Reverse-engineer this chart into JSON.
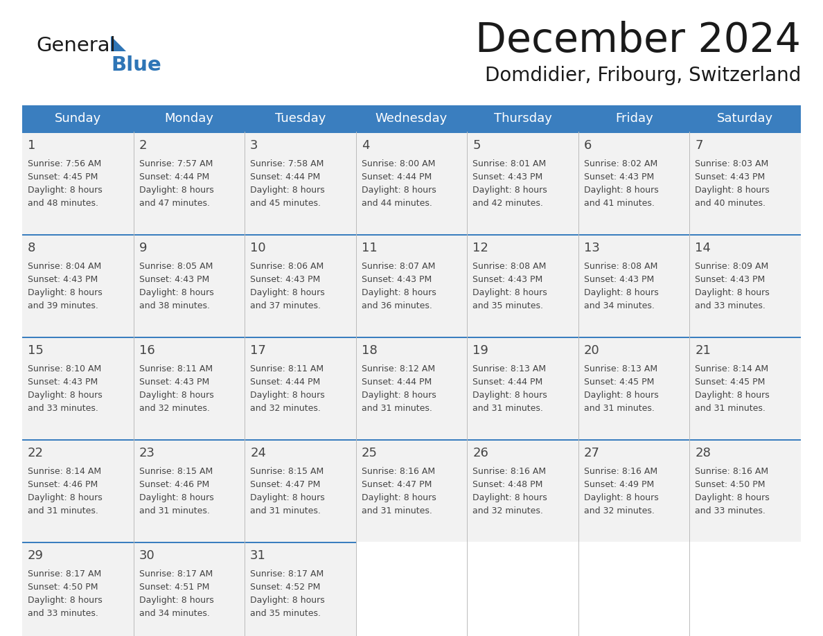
{
  "title": "December 2024",
  "subtitle": "Domdidier, Fribourg, Switzerland",
  "days_of_week": [
    "Sunday",
    "Monday",
    "Tuesday",
    "Wednesday",
    "Thursday",
    "Friday",
    "Saturday"
  ],
  "header_bg": "#3a7ebf",
  "header_text_color": "#ffffff",
  "cell_bg": "#f2f2f2",
  "cell_bg_empty": "#ffffff",
  "divider_color": "#3a7ebf",
  "text_color": "#444444",
  "title_color": "#1a1a1a",
  "logo_general_color": "#1a1a1a",
  "logo_blue_color": "#2e75b6",
  "logo_triangle_color": "#2e75b6",
  "calendar_data": [
    [
      {
        "day": 1,
        "sunrise": "7:56 AM",
        "sunset": "4:45 PM",
        "daylight_hours": 8,
        "daylight_minutes": 48
      },
      {
        "day": 2,
        "sunrise": "7:57 AM",
        "sunset": "4:44 PM",
        "daylight_hours": 8,
        "daylight_minutes": 47
      },
      {
        "day": 3,
        "sunrise": "7:58 AM",
        "sunset": "4:44 PM",
        "daylight_hours": 8,
        "daylight_minutes": 45
      },
      {
        "day": 4,
        "sunrise": "8:00 AM",
        "sunset": "4:44 PM",
        "daylight_hours": 8,
        "daylight_minutes": 44
      },
      {
        "day": 5,
        "sunrise": "8:01 AM",
        "sunset": "4:43 PM",
        "daylight_hours": 8,
        "daylight_minutes": 42
      },
      {
        "day": 6,
        "sunrise": "8:02 AM",
        "sunset": "4:43 PM",
        "daylight_hours": 8,
        "daylight_minutes": 41
      },
      {
        "day": 7,
        "sunrise": "8:03 AM",
        "sunset": "4:43 PM",
        "daylight_hours": 8,
        "daylight_minutes": 40
      }
    ],
    [
      {
        "day": 8,
        "sunrise": "8:04 AM",
        "sunset": "4:43 PM",
        "daylight_hours": 8,
        "daylight_minutes": 39
      },
      {
        "day": 9,
        "sunrise": "8:05 AM",
        "sunset": "4:43 PM",
        "daylight_hours": 8,
        "daylight_minutes": 38
      },
      {
        "day": 10,
        "sunrise": "8:06 AM",
        "sunset": "4:43 PM",
        "daylight_hours": 8,
        "daylight_minutes": 37
      },
      {
        "day": 11,
        "sunrise": "8:07 AM",
        "sunset": "4:43 PM",
        "daylight_hours": 8,
        "daylight_minutes": 36
      },
      {
        "day": 12,
        "sunrise": "8:08 AM",
        "sunset": "4:43 PM",
        "daylight_hours": 8,
        "daylight_minutes": 35
      },
      {
        "day": 13,
        "sunrise": "8:08 AM",
        "sunset": "4:43 PM",
        "daylight_hours": 8,
        "daylight_minutes": 34
      },
      {
        "day": 14,
        "sunrise": "8:09 AM",
        "sunset": "4:43 PM",
        "daylight_hours": 8,
        "daylight_minutes": 33
      }
    ],
    [
      {
        "day": 15,
        "sunrise": "8:10 AM",
        "sunset": "4:43 PM",
        "daylight_hours": 8,
        "daylight_minutes": 33
      },
      {
        "day": 16,
        "sunrise": "8:11 AM",
        "sunset": "4:43 PM",
        "daylight_hours": 8,
        "daylight_minutes": 32
      },
      {
        "day": 17,
        "sunrise": "8:11 AM",
        "sunset": "4:44 PM",
        "daylight_hours": 8,
        "daylight_minutes": 32
      },
      {
        "day": 18,
        "sunrise": "8:12 AM",
        "sunset": "4:44 PM",
        "daylight_hours": 8,
        "daylight_minutes": 31
      },
      {
        "day": 19,
        "sunrise": "8:13 AM",
        "sunset": "4:44 PM",
        "daylight_hours": 8,
        "daylight_minutes": 31
      },
      {
        "day": 20,
        "sunrise": "8:13 AM",
        "sunset": "4:45 PM",
        "daylight_hours": 8,
        "daylight_minutes": 31
      },
      {
        "day": 21,
        "sunrise": "8:14 AM",
        "sunset": "4:45 PM",
        "daylight_hours": 8,
        "daylight_minutes": 31
      }
    ],
    [
      {
        "day": 22,
        "sunrise": "8:14 AM",
        "sunset": "4:46 PM",
        "daylight_hours": 8,
        "daylight_minutes": 31
      },
      {
        "day": 23,
        "sunrise": "8:15 AM",
        "sunset": "4:46 PM",
        "daylight_hours": 8,
        "daylight_minutes": 31
      },
      {
        "day": 24,
        "sunrise": "8:15 AM",
        "sunset": "4:47 PM",
        "daylight_hours": 8,
        "daylight_minutes": 31
      },
      {
        "day": 25,
        "sunrise": "8:16 AM",
        "sunset": "4:47 PM",
        "daylight_hours": 8,
        "daylight_minutes": 31
      },
      {
        "day": 26,
        "sunrise": "8:16 AM",
        "sunset": "4:48 PM",
        "daylight_hours": 8,
        "daylight_minutes": 32
      },
      {
        "day": 27,
        "sunrise": "8:16 AM",
        "sunset": "4:49 PM",
        "daylight_hours": 8,
        "daylight_minutes": 32
      },
      {
        "day": 28,
        "sunrise": "8:16 AM",
        "sunset": "4:50 PM",
        "daylight_hours": 8,
        "daylight_minutes": 33
      }
    ],
    [
      {
        "day": 29,
        "sunrise": "8:17 AM",
        "sunset": "4:50 PM",
        "daylight_hours": 8,
        "daylight_minutes": 33
      },
      {
        "day": 30,
        "sunrise": "8:17 AM",
        "sunset": "4:51 PM",
        "daylight_hours": 8,
        "daylight_minutes": 34
      },
      {
        "day": 31,
        "sunrise": "8:17 AM",
        "sunset": "4:52 PM",
        "daylight_hours": 8,
        "daylight_minutes": 35
      },
      null,
      null,
      null,
      null
    ]
  ]
}
